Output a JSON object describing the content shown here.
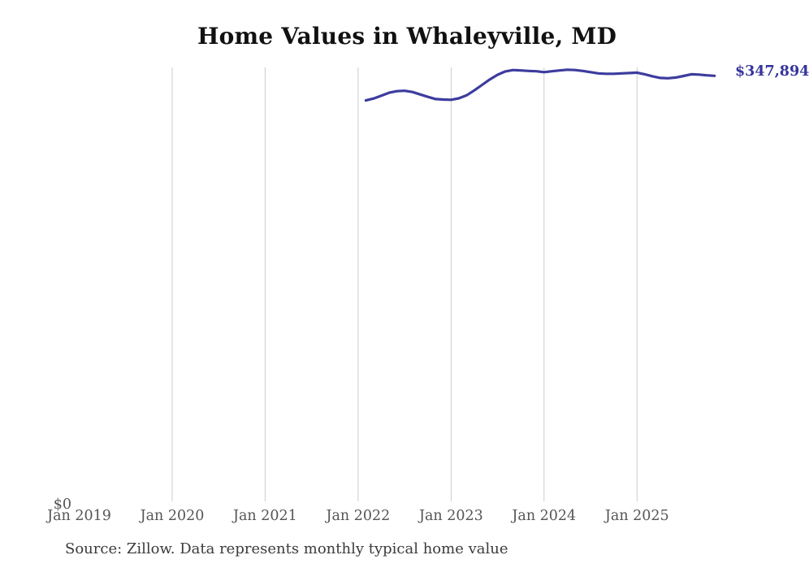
{
  "chart": {
    "title": "Home Values in Whaleyville, MD",
    "y_zero_label": "$0",
    "end_label": "$347,894",
    "source": "Source: Zillow. Data represents monthly typical home value"
  },
  "chart_data": {
    "type": "line",
    "title": "Home Values in Whaleyville, MD",
    "xlabel": "",
    "ylabel": "",
    "ylim": [
      0,
      355000
    ],
    "grid": "vertical-only",
    "legend": "none",
    "line_color": "#3D3C9E",
    "gridline_color": "#cccccc",
    "end_label": "$347,894",
    "end_label_color": "#34349B",
    "x_ticks": [
      {
        "label": "Jan 2019",
        "month": "2019-01",
        "gridline": false
      },
      {
        "label": "Jan 2020",
        "month": "2020-01",
        "gridline": true
      },
      {
        "label": "Jan 2021",
        "month": "2021-01",
        "gridline": true
      },
      {
        "label": "Jan 2022",
        "month": "2022-01",
        "gridline": true
      },
      {
        "label": "Jan 2023",
        "month": "2023-01",
        "gridline": true
      },
      {
        "label": "Jan 2024",
        "month": "2024-01",
        "gridline": true
      },
      {
        "label": "Jan 2025",
        "month": "2025-01",
        "gridline": true
      }
    ],
    "x": [
      "2022-02",
      "2022-03",
      "2022-04",
      "2022-05",
      "2022-06",
      "2022-07",
      "2022-08",
      "2022-09",
      "2022-10",
      "2022-11",
      "2022-12",
      "2023-01",
      "2023-02",
      "2023-03",
      "2023-04",
      "2023-05",
      "2023-06",
      "2023-07",
      "2023-08",
      "2023-09",
      "2023-10",
      "2023-11",
      "2023-12",
      "2024-01",
      "2024-02",
      "2024-03",
      "2024-04",
      "2024-05",
      "2024-06",
      "2024-07",
      "2024-08",
      "2024-09",
      "2024-10",
      "2024-11",
      "2024-12",
      "2025-01",
      "2025-02",
      "2025-03",
      "2025-04",
      "2025-05",
      "2025-06",
      "2025-07",
      "2025-08",
      "2025-09",
      "2025-10",
      "2025-11"
    ],
    "series": [
      {
        "name": "Monthly typical home value",
        "values": [
          327800,
          329400,
          331700,
          334100,
          335400,
          335700,
          334700,
          332700,
          330700,
          328900,
          328500,
          328300,
          329500,
          332000,
          336000,
          340500,
          345000,
          348800,
          351500,
          352600,
          352300,
          351900,
          351600,
          350900,
          351600,
          352300,
          352900,
          352600,
          351900,
          350900,
          349900,
          349600,
          349600,
          349900,
          350200,
          350500,
          349200,
          347500,
          346200,
          345900,
          346500,
          347800,
          349200,
          348900,
          348300,
          347894
        ]
      }
    ]
  }
}
